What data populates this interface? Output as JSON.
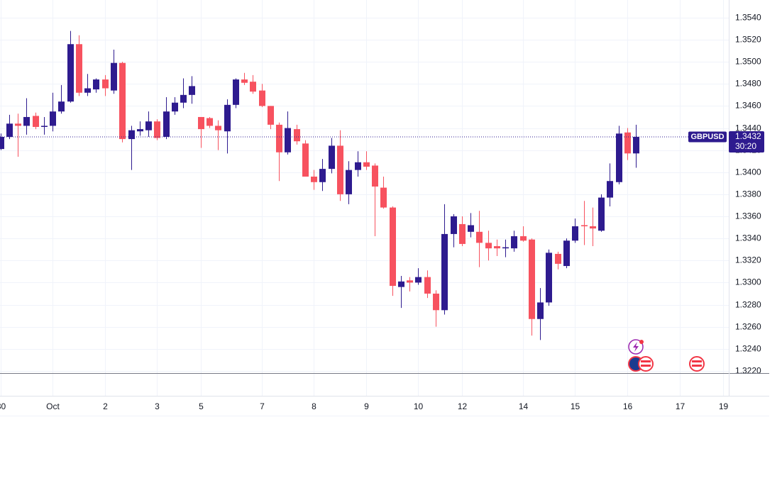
{
  "chart_data": {
    "type": "candlestick",
    "series": [
      {
        "name": "GBPUSD",
        "up_color": "#2e1b8f",
        "down_color": "#f7525f",
        "open": [
          1.3421,
          1.3432,
          1.3444,
          1.3442,
          1.3451,
          1.3441,
          1.3442,
          1.3455,
          1.3464,
          1.3516,
          1.3472,
          1.3475,
          1.3484,
          1.3474,
          1.3499,
          1.343,
          1.3437,
          1.3438,
          1.3446,
          1.3432,
          1.3455,
          1.3463,
          1.347,
          1.345,
          1.3449,
          1.3442,
          1.3437,
          1.3461,
          1.3484,
          1.3482,
          1.3474,
          1.346,
          1.3443,
          1.3418,
          1.3439,
          1.3426,
          1.3396,
          1.3391,
          1.3403,
          1.3424,
          1.338,
          1.3402,
          1.3409,
          1.3406,
          1.3386,
          1.3368,
          1.3296,
          1.3302,
          1.33,
          1.3305,
          1.329,
          1.3275,
          1.3344,
          1.3353,
          1.3346,
          1.3346,
          1.3336,
          1.3333,
          1.3331,
          1.3331,
          1.3342,
          1.3339,
          1.3267,
          1.3282,
          1.3326,
          1.3315,
          1.3338,
          1.3352,
          1.3351,
          1.3347,
          1.3377,
          1.3391,
          1.3436,
          1.3417
        ],
        "high": [
          1.3435,
          1.3452,
          1.3453,
          1.3467,
          1.3454,
          1.345,
          1.3472,
          1.3479,
          1.3528,
          1.3524,
          1.3489,
          1.3485,
          1.3488,
          1.3511,
          1.35,
          1.3442,
          1.3446,
          1.3455,
          1.3448,
          1.3468,
          1.3468,
          1.3485,
          1.3487,
          1.345,
          1.345,
          1.3447,
          1.3466,
          1.3485,
          1.349,
          1.3488,
          1.348,
          1.346,
          1.3445,
          1.3455,
          1.3443,
          1.3429,
          1.3402,
          1.3412,
          1.3431,
          1.3438,
          1.341,
          1.3419,
          1.3419,
          1.3408,
          1.3396,
          1.3369,
          1.3306,
          1.3305,
          1.3313,
          1.3311,
          1.3293,
          1.3371,
          1.3362,
          1.336,
          1.3363,
          1.3365,
          1.3347,
          1.3339,
          1.3339,
          1.3347,
          1.3351,
          1.334,
          1.3295,
          1.333,
          1.3328,
          1.334,
          1.3358,
          1.3374,
          1.3368,
          1.338,
          1.3408,
          1.3442,
          1.344,
          1.3443
        ],
        "low": [
          1.342,
          1.343,
          1.3414,
          1.3434,
          1.3439,
          1.3434,
          1.3437,
          1.3453,
          1.3463,
          1.3469,
          1.3469,
          1.3472,
          1.3469,
          1.3471,
          1.3427,
          1.3402,
          1.3433,
          1.3432,
          1.3429,
          1.343,
          1.3452,
          1.3458,
          1.3462,
          1.3422,
          1.344,
          1.342,
          1.3417,
          1.3458,
          1.3479,
          1.3471,
          1.3459,
          1.3439,
          1.3392,
          1.3416,
          1.3425,
          1.3396,
          1.3384,
          1.3383,
          1.3399,
          1.3374,
          1.3371,
          1.3396,
          1.3402,
          1.3342,
          1.3367,
          1.3288,
          1.3277,
          1.3292,
          1.3298,
          1.3286,
          1.326,
          1.3271,
          1.3332,
          1.3333,
          1.3341,
          1.3314,
          1.332,
          1.3324,
          1.3323,
          1.3328,
          1.3337,
          1.3252,
          1.3248,
          1.3279,
          1.3312,
          1.3313,
          1.3336,
          1.3334,
          1.3333,
          1.3346,
          1.3369,
          1.3389,
          1.3411,
          1.3404
        ],
        "close": [
          1.3432,
          1.3444,
          1.3442,
          1.345,
          1.3441,
          1.3442,
          1.3455,
          1.3464,
          1.3516,
          1.3472,
          1.3476,
          1.3484,
          1.3476,
          1.3499,
          1.343,
          1.3438,
          1.3439,
          1.3446,
          1.3431,
          1.3455,
          1.3463,
          1.347,
          1.3478,
          1.3439,
          1.3442,
          1.3438,
          1.3461,
          1.3484,
          1.3481,
          1.3473,
          1.346,
          1.3443,
          1.3418,
          1.344,
          1.3428,
          1.3396,
          1.3391,
          1.3403,
          1.3424,
          1.338,
          1.3402,
          1.3409,
          1.3405,
          1.3387,
          1.3368,
          1.3297,
          1.3301,
          1.33,
          1.3305,
          1.329,
          1.3275,
          1.3344,
          1.336,
          1.3335,
          1.3352,
          1.3336,
          1.3331,
          1.3331,
          1.3332,
          1.3342,
          1.3338,
          1.3267,
          1.3282,
          1.3327,
          1.3317,
          1.3338,
          1.3351,
          1.3351,
          1.3349,
          1.3377,
          1.3392,
          1.3435,
          1.3417,
          1.3432
        ]
      }
    ],
    "last_price": 1.3432,
    "last_price_color": "#2e1b8f",
    "countdown": "30:20",
    "xlim": [
      0,
      83.5
    ],
    "xticks": [
      {
        "value": 0,
        "label": "30"
      },
      {
        "value": 6,
        "label": "Oct"
      },
      {
        "value": 12,
        "label": "2"
      },
      {
        "value": 18,
        "label": "3"
      },
      {
        "value": 23,
        "label": "5"
      },
      {
        "value": 30,
        "label": "7"
      },
      {
        "value": 36,
        "label": "8"
      },
      {
        "value": 42,
        "label": "9"
      },
      {
        "value": 48,
        "label": "10"
      },
      {
        "value": 53,
        "label": "12"
      },
      {
        "value": 60,
        "label": "14"
      },
      {
        "value": 66,
        "label": "15"
      },
      {
        "value": 72,
        "label": "16"
      },
      {
        "value": 78,
        "label": "17"
      },
      {
        "value": 83,
        "label": "19"
      }
    ],
    "ylim": [
      1.3218,
      1.3556
    ],
    "yticks": [
      {
        "value": 1.322,
        "label": "1.3220"
      },
      {
        "value": 1.324,
        "label": "1.3240"
      },
      {
        "value": 1.326,
        "label": "1.3260"
      },
      {
        "value": 1.328,
        "label": "1.3280"
      },
      {
        "value": 1.33,
        "label": "1.3300"
      },
      {
        "value": 1.332,
        "label": "1.3320"
      },
      {
        "value": 1.334,
        "label": "1.3340"
      },
      {
        "value": 1.336,
        "label": "1.3360"
      },
      {
        "value": 1.338,
        "label": "1.3380"
      },
      {
        "value": 1.34,
        "label": "1.3400"
      },
      {
        "value": 1.342,
        "label": "1.3420"
      },
      {
        "value": 1.344,
        "label": "1.3440"
      },
      {
        "value": 1.346,
        "label": "1.3460"
      },
      {
        "value": 1.348,
        "label": "1.3480"
      },
      {
        "value": 1.35,
        "label": "1.3500"
      },
      {
        "value": 1.352,
        "label": "1.3520"
      },
      {
        "value": 1.354,
        "label": "1.3540"
      }
    ],
    "grid": true
  }
}
